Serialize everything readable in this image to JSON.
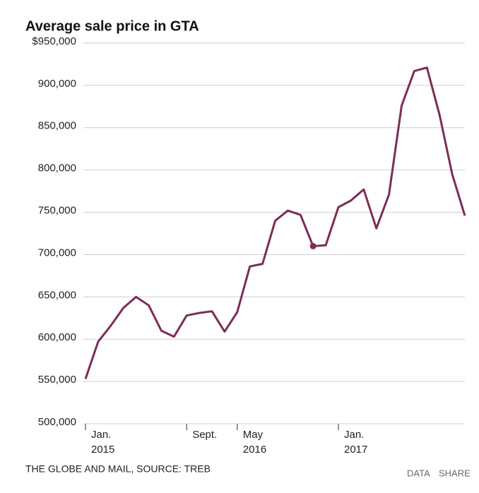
{
  "chart_data": {
    "type": "line",
    "title": "Average sale price in GTA",
    "source": "THE GLOBE AND MAIL, SOURCE: TREB",
    "buttons": [
      "DATA",
      "SHARE"
    ],
    "categories": [
      "Jan. 2015",
      null,
      null,
      null,
      null,
      null,
      null,
      null,
      "Sept.",
      null,
      null,
      null,
      "May 2016",
      null,
      null,
      null,
      null,
      null,
      null,
      null,
      "Jan. 2017",
      null,
      null,
      null,
      null,
      null,
      null,
      null,
      null,
      null,
      null
    ],
    "series": [
      {
        "name": "Average sale price",
        "color": "#7b2d57",
        "values": [
          553000,
          597000,
          616000,
          637000,
          650000,
          640000,
          610000,
          603000,
          628000,
          631000,
          633000,
          609000,
          632000,
          686000,
          689000,
          740000,
          752000,
          747000,
          710000,
          711000,
          756000,
          764000,
          777000,
          731000,
          771000,
          876000,
          917000,
          921000,
          865000,
          795000,
          746000
        ]
      }
    ],
    "highlight": 18,
    "ylim": [
      500000,
      950000
    ],
    "yticks": [
      {
        "value": 500000,
        "label": "500,000"
      },
      {
        "value": 550000,
        "label": "550,000"
      },
      {
        "value": 600000,
        "label": "600,000"
      },
      {
        "value": 650000,
        "label": "650,000"
      },
      {
        "value": 700000,
        "label": "700,000"
      },
      {
        "value": 750000,
        "label": "750,000"
      },
      {
        "value": 800000,
        "label": "800,000"
      },
      {
        "value": 850000,
        "label": "850,000"
      },
      {
        "value": 900000,
        "label": "900,000"
      },
      {
        "value": 950000,
        "label": "$950,000"
      }
    ],
    "grid": true
  }
}
